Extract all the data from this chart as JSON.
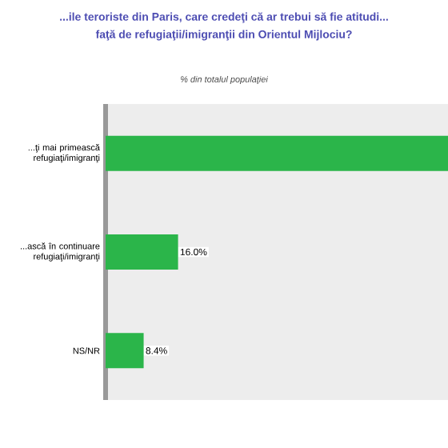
{
  "chart_data": {
    "type": "bar",
    "orientation": "horizontal",
    "title": "...ile teroriste din Paris, care credeţi că ar trebui să fie atitudi...",
    "subtitle": "faţă de refugiaţii/imigranţii din Orientul Mijlociu?",
    "annotations": [
      "% din totalul populaţiei"
    ],
    "categories": [
      "...ţi mai primească refugiaţi/imigranţi",
      "...ască în continuare refugiaţi/imigranţi",
      "NS/NR"
    ],
    "values": [
      75.6,
      16.0,
      8.4
    ],
    "value_labels": [
      null,
      "16.0%",
      "8.4%"
    ],
    "color": "#2bb54a"
  }
}
